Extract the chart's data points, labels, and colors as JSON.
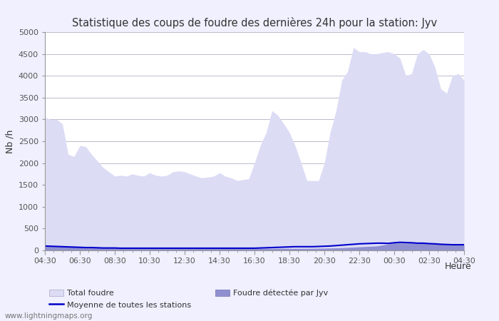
{
  "title": "Statistique des coups de foudre des dernières 24h pour la station: Jyv",
  "xlabel": "Heure",
  "ylabel": "Nb /h",
  "ylim": [
    0,
    5000
  ],
  "yticks": [
    0,
    500,
    1000,
    1500,
    2000,
    2500,
    3000,
    3500,
    4000,
    4500,
    5000
  ],
  "xtick_labels": [
    "04:30",
    "06:30",
    "08:30",
    "10:30",
    "12:30",
    "14:30",
    "16:30",
    "18:30",
    "20:30",
    "22:30",
    "00:30",
    "02:30",
    "04:30"
  ],
  "watermark": "www.lightningmaps.org",
  "total_foudre_x": [
    0,
    0.33,
    0.67,
    1,
    1.33,
    1.67,
    2,
    2.33,
    2.67,
    3,
    3.33,
    3.67,
    4,
    4.33,
    4.67,
    5,
    5.33,
    5.67,
    6,
    6.33,
    6.67,
    7,
    7.33,
    7.67,
    8,
    8.33,
    8.67,
    9,
    9.33,
    9.67,
    10,
    10.33,
    10.67,
    11,
    11.33,
    11.67,
    12,
    12.33,
    12.67,
    13,
    13.33,
    13.67,
    14,
    14.33,
    14.67,
    15,
    15.33,
    15.67,
    16,
    16.33,
    16.67,
    17,
    17.33,
    17.67,
    18,
    18.33,
    18.67,
    19,
    19.33,
    19.67,
    20,
    20.33,
    20.67,
    21,
    21.33,
    21.67,
    22,
    22.33,
    22.67,
    23,
    23.33,
    23.67,
    24
  ],
  "total_foudre_y": [
    3050,
    3000,
    3000,
    2900,
    2200,
    2150,
    2400,
    2380,
    2200,
    2050,
    1900,
    1800,
    1700,
    1720,
    1700,
    1750,
    1720,
    1700,
    1780,
    1720,
    1700,
    1720,
    1800,
    1820,
    1800,
    1750,
    1700,
    1660,
    1680,
    1700,
    1780,
    1700,
    1660,
    1600,
    1620,
    1640,
    2000,
    2400,
    2700,
    3200,
    3100,
    2900,
    2700,
    2400,
    2000,
    1600,
    1600,
    1600,
    2000,
    2700,
    3200,
    3900,
    4100,
    4650,
    4550,
    4550,
    4500,
    4500,
    4530,
    4550,
    4500,
    4400,
    4000,
    4050,
    4500,
    4600,
    4500,
    4200,
    3700,
    3600,
    4000,
    4050,
    3900
  ],
  "foudre_jyv_x": [
    0,
    1,
    2,
    3,
    4,
    5,
    6,
    7,
    8,
    9,
    10,
    11,
    12,
    13,
    14,
    15,
    16,
    17,
    18,
    19,
    20,
    21,
    22,
    23,
    24
  ],
  "foudre_jyv_y": [
    100,
    90,
    80,
    70,
    60,
    50,
    50,
    50,
    50,
    45,
    45,
    45,
    45,
    45,
    45,
    45,
    50,
    60,
    80,
    100,
    170,
    170,
    160,
    140,
    130
  ],
  "moyenne_x": [
    0,
    0.33,
    0.67,
    1,
    1.33,
    1.67,
    2,
    2.33,
    2.67,
    3,
    3.33,
    3.67,
    4,
    4.33,
    4.67,
    5,
    5.33,
    5.67,
    6,
    6.33,
    6.67,
    7,
    7.33,
    7.67,
    8,
    8.33,
    8.67,
    9,
    9.33,
    9.67,
    10,
    10.33,
    10.67,
    11,
    11.33,
    11.67,
    12,
    12.33,
    12.67,
    13,
    13.33,
    13.67,
    14,
    14.33,
    14.67,
    15,
    15.33,
    15.67,
    16,
    16.33,
    16.67,
    17,
    17.33,
    17.67,
    18,
    18.33,
    18.67,
    19,
    19.33,
    19.67,
    20,
    20.33,
    20.67,
    21,
    21.33,
    21.67,
    22,
    22.33,
    22.67,
    23,
    23.33,
    23.67,
    24
  ],
  "moyenne_y": [
    100,
    95,
    90,
    85,
    80,
    75,
    70,
    65,
    65,
    60,
    55,
    55,
    55,
    50,
    50,
    50,
    50,
    50,
    50,
    50,
    50,
    50,
    50,
    50,
    50,
    50,
    50,
    50,
    50,
    50,
    50,
    50,
    50,
    50,
    50,
    50,
    50,
    55,
    60,
    65,
    70,
    75,
    80,
    85,
    85,
    85,
    85,
    90,
    95,
    100,
    110,
    120,
    130,
    140,
    150,
    155,
    160,
    165,
    165,
    160,
    175,
    185,
    180,
    175,
    165,
    165,
    155,
    150,
    140,
    135,
    130,
    130,
    130
  ],
  "total_fill_color": "#dcdcf5",
  "jyv_fill_color": "#9090d0",
  "mean_line_color": "#0000cc",
  "bg_color": "#f0f0ff",
  "plot_bg_color": "#ffffff",
  "grid_color": "#bbbbcc",
  "spine_color": "#999999",
  "tick_color": "#555555",
  "label_color": "#333333"
}
